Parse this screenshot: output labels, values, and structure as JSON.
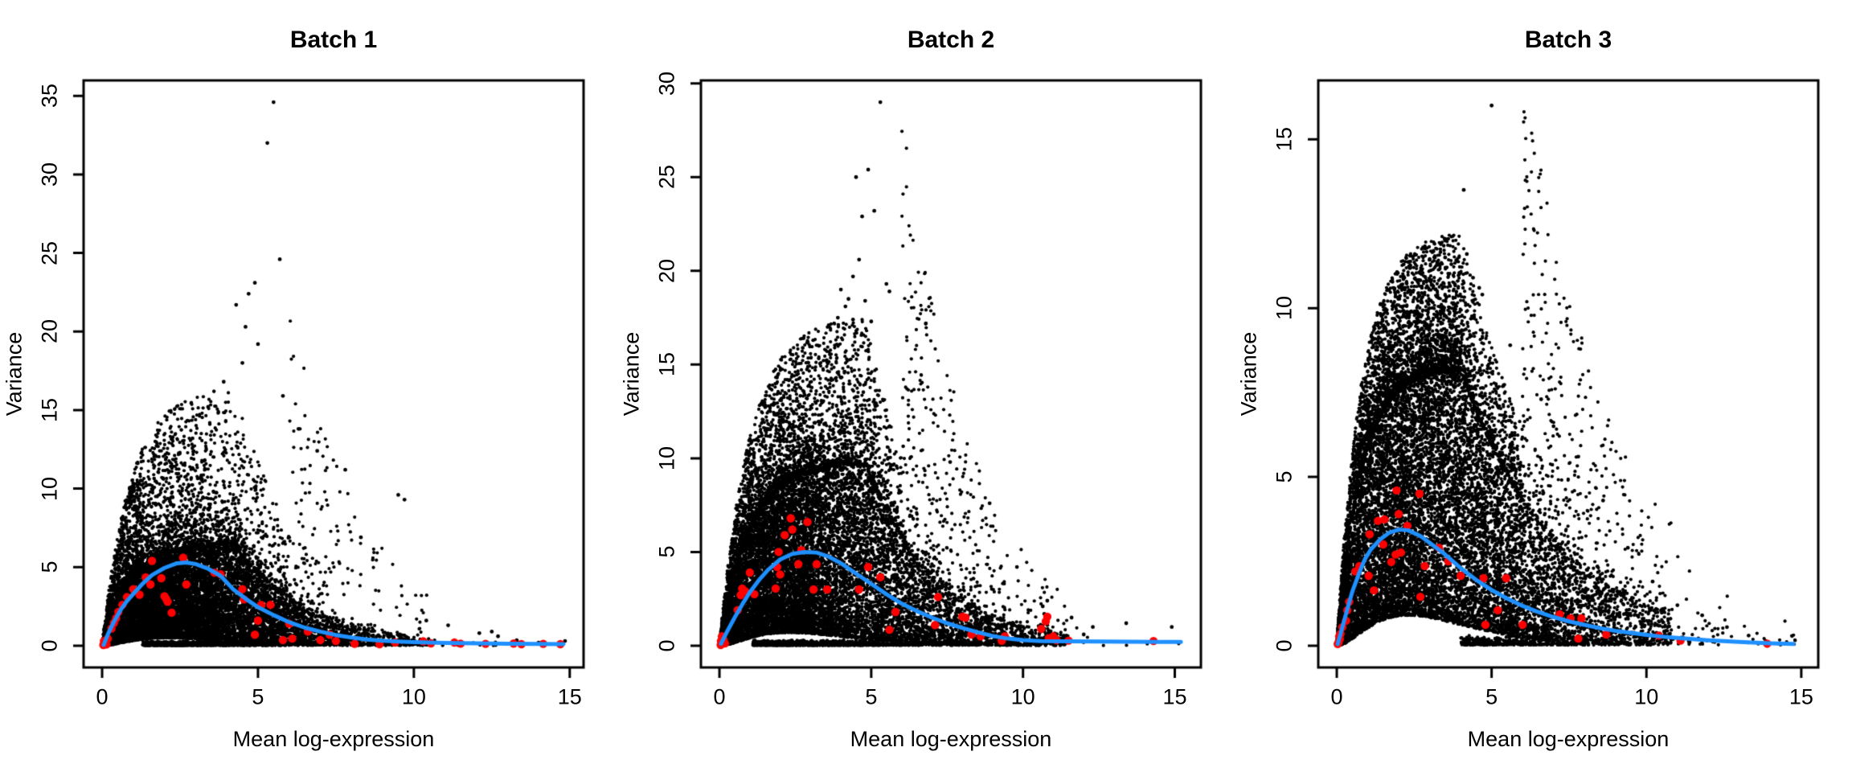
{
  "figure": {
    "background": "#ffffff"
  },
  "style": {
    "point_color": "#000000",
    "spike_color": "#ff0000",
    "trend_color": "#1e90ff",
    "axis_color": "#000000"
  },
  "chart_data": [
    {
      "type": "scatter",
      "title": "Batch 1",
      "xlabel": "Mean log-expression",
      "ylabel": "Variance",
      "xticks": [
        0,
        5,
        10,
        15
      ],
      "yticks": [
        0,
        5,
        10,
        15,
        20,
        25,
        30,
        35
      ],
      "xlim": [
        0,
        14.85
      ],
      "ylim": [
        0,
        34.6
      ],
      "grid": false,
      "legend": "none",
      "trend": [
        [
          0.05,
          0.05
        ],
        [
          0.2,
          0.8
        ],
        [
          0.4,
          1.6
        ],
        [
          0.6,
          2.3
        ],
        [
          0.8,
          2.85
        ],
        [
          1.0,
          3.3
        ],
        [
          1.3,
          3.95
        ],
        [
          1.6,
          4.5
        ],
        [
          2.0,
          4.95
        ],
        [
          2.4,
          5.25
        ],
        [
          2.7,
          5.3
        ],
        [
          3.0,
          5.2
        ],
        [
          3.4,
          4.9
        ],
        [
          3.8,
          4.45
        ],
        [
          4.2,
          3.6
        ],
        [
          4.6,
          3.0
        ],
        [
          5.0,
          2.45
        ],
        [
          5.5,
          1.95
        ],
        [
          6.0,
          1.5
        ],
        [
          6.5,
          1.15
        ],
        [
          7.0,
          0.9
        ],
        [
          7.5,
          0.68
        ],
        [
          8.0,
          0.52
        ],
        [
          8.5,
          0.4
        ],
        [
          9.0,
          0.32
        ],
        [
          9.5,
          0.27
        ],
        [
          10.0,
          0.23
        ],
        [
          11.0,
          0.18
        ],
        [
          12.0,
          0.15
        ],
        [
          13.0,
          0.12
        ],
        [
          14.0,
          0.11
        ],
        [
          14.8,
          0.1
        ]
      ],
      "spike_points": [
        [
          0.04,
          0.05
        ],
        [
          0.08,
          0.12
        ],
        [
          0.12,
          0.22
        ],
        [
          0.18,
          0.45
        ],
        [
          0.06,
          0.3
        ],
        [
          0.14,
          0.08
        ],
        [
          0.3,
          1.1
        ],
        [
          0.38,
          1.45
        ],
        [
          0.45,
          1.75
        ],
        [
          0.52,
          2.15
        ],
        [
          0.65,
          2.6
        ],
        [
          0.8,
          3.1
        ],
        [
          1.0,
          3.6
        ],
        [
          1.2,
          3.25
        ],
        [
          1.4,
          4.35
        ],
        [
          1.55,
          3.9
        ],
        [
          1.6,
          5.4
        ],
        [
          1.9,
          4.3
        ],
        [
          2.0,
          3.15
        ],
        [
          2.05,
          3.0
        ],
        [
          2.1,
          2.8
        ],
        [
          2.23,
          2.1
        ],
        [
          2.6,
          5.6
        ],
        [
          2.7,
          3.9
        ],
        [
          3.6,
          4.65
        ],
        [
          3.8,
          4.55
        ],
        [
          4.5,
          3.6
        ],
        [
          4.55,
          2.95
        ],
        [
          4.9,
          0.7
        ],
        [
          5.0,
          1.6
        ],
        [
          5.1,
          2.6
        ],
        [
          5.4,
          2.6
        ],
        [
          5.8,
          0.36
        ],
        [
          6.0,
          1.4
        ],
        [
          6.1,
          0.45
        ],
        [
          6.6,
          0.9
        ],
        [
          7.0,
          0.36
        ],
        [
          7.3,
          0.7
        ],
        [
          7.5,
          0.3
        ],
        [
          8.1,
          0.12
        ],
        [
          8.9,
          0.1
        ],
        [
          9.4,
          0.2
        ],
        [
          10.3,
          0.28
        ],
        [
          10.55,
          0.15
        ],
        [
          11.3,
          0.2
        ],
        [
          11.5,
          0.13
        ],
        [
          12.3,
          0.12
        ],
        [
          13.2,
          0.14
        ],
        [
          13.45,
          0.1
        ],
        [
          14.15,
          0.12
        ],
        [
          14.7,
          0.1
        ]
      ],
      "outlier_points": [
        [
          5.5,
          34.6
        ],
        [
          5.3,
          32.0
        ],
        [
          5.7,
          24.6
        ],
        [
          4.9,
          23.1
        ],
        [
          4.7,
          22.4
        ],
        [
          4.3,
          21.7
        ],
        [
          4.6,
          20.3
        ],
        [
          5.0,
          19.2
        ],
        [
          4.5,
          18.0
        ],
        [
          3.9,
          16.8
        ],
        [
          5.8,
          15.9
        ],
        [
          3.4,
          15.2
        ],
        [
          6.3,
          13.8
        ],
        [
          2.9,
          13.2
        ],
        [
          6.9,
          12.4
        ],
        [
          7.8,
          11.2
        ],
        [
          9.5,
          9.6
        ],
        [
          9.7,
          9.3
        ],
        [
          8.3,
          6.9
        ],
        [
          10.4,
          1.6
        ],
        [
          11.1,
          1.3
        ],
        [
          12.1,
          0.8
        ],
        [
          12.5,
          0.9
        ],
        [
          12.7,
          0.6
        ],
        [
          13.3,
          0.35
        ],
        [
          14.0,
          0.2
        ],
        [
          14.85,
          0.3
        ]
      ],
      "cloud": {
        "n": 14000,
        "seed": 11,
        "x_scale": 1.55,
        "funnel_frac": 0.07,
        "env": {
          "M": 6.6,
          "rise": 0.9,
          "ds": 4.2,
          "dsc": 2.4
        },
        "low": {
          "m": 0.5,
          "p": 2.1
        },
        "floor_frac": 0.12,
        "floor_xmin": 1.3,
        "above_frac": 0.16,
        "k_above": 1.5,
        "k_far": 6,
        "tail_cut": 10.5,
        "tail_keep": 0.12
      }
    },
    {
      "type": "scatter",
      "title": "Batch 2",
      "xlabel": "Mean log-expression",
      "ylabel": "Variance",
      "xticks": [
        0,
        5,
        10,
        15
      ],
      "yticks": [
        0,
        5,
        10,
        15,
        20,
        25,
        30
      ],
      "xlim": [
        0,
        15.25
      ],
      "ylim": [
        0,
        29.0
      ],
      "grid": false,
      "legend": "none",
      "trend": [
        [
          0.05,
          0.1
        ],
        [
          0.25,
          0.75
        ],
        [
          0.5,
          1.5
        ],
        [
          0.75,
          2.2
        ],
        [
          1.0,
          2.85
        ],
        [
          1.3,
          3.5
        ],
        [
          1.6,
          4.05
        ],
        [
          2.0,
          4.6
        ],
        [
          2.4,
          4.9
        ],
        [
          2.8,
          5.0
        ],
        [
          3.2,
          4.97
        ],
        [
          3.6,
          4.75
        ],
        [
          4.0,
          4.4
        ],
        [
          4.5,
          3.85
        ],
        [
          5.0,
          3.3
        ],
        [
          5.5,
          2.75
        ],
        [
          6.0,
          2.25
        ],
        [
          6.5,
          1.85
        ],
        [
          7.0,
          1.5
        ],
        [
          7.5,
          1.2
        ],
        [
          8.0,
          0.95
        ],
        [
          8.5,
          0.72
        ],
        [
          9.0,
          0.52
        ],
        [
          9.5,
          0.38
        ],
        [
          10.0,
          0.3
        ],
        [
          10.6,
          0.25
        ],
        [
          11.5,
          0.23
        ],
        [
          12.5,
          0.22
        ],
        [
          13.5,
          0.21
        ],
        [
          14.5,
          0.2
        ],
        [
          15.2,
          0.2
        ]
      ],
      "spike_points": [
        [
          0.04,
          0.04
        ],
        [
          0.07,
          0.1
        ],
        [
          0.1,
          0.2
        ],
        [
          0.13,
          0.32
        ],
        [
          0.08,
          0.5
        ],
        [
          0.18,
          0.12
        ],
        [
          0.05,
          0.25
        ],
        [
          0.6,
          1.9
        ],
        [
          0.7,
          2.7
        ],
        [
          0.75,
          3.05
        ],
        [
          0.85,
          2.9
        ],
        [
          1.0,
          3.9
        ],
        [
          1.15,
          2.75
        ],
        [
          1.85,
          3.05
        ],
        [
          1.9,
          4.2
        ],
        [
          1.95,
          5.0
        ],
        [
          2.0,
          3.8
        ],
        [
          2.15,
          5.9
        ],
        [
          2.35,
          6.8
        ],
        [
          2.4,
          6.2
        ],
        [
          2.6,
          4.35
        ],
        [
          2.7,
          5.1
        ],
        [
          2.9,
          6.6
        ],
        [
          3.1,
          3.0
        ],
        [
          3.2,
          4.35
        ],
        [
          3.55,
          3.0
        ],
        [
          4.6,
          3.0
        ],
        [
          4.9,
          4.2
        ],
        [
          5.3,
          3.65
        ],
        [
          5.6,
          0.85
        ],
        [
          5.8,
          1.8
        ],
        [
          7.1,
          1.1
        ],
        [
          7.2,
          2.6
        ],
        [
          8.0,
          1.55
        ],
        [
          8.1,
          1.5
        ],
        [
          8.3,
          0.6
        ],
        [
          8.6,
          0.5
        ],
        [
          9.3,
          0.26
        ],
        [
          9.4,
          0.5
        ],
        [
          10.6,
          0.9
        ],
        [
          10.75,
          1.3
        ],
        [
          10.8,
          1.55
        ],
        [
          10.85,
          0.4
        ],
        [
          11.0,
          0.5
        ],
        [
          11.1,
          0.3
        ],
        [
          11.5,
          0.27
        ],
        [
          14.3,
          0.25
        ]
      ],
      "outlier_points": [
        [
          5.3,
          29.0
        ],
        [
          4.9,
          25.4
        ],
        [
          4.5,
          25.0
        ],
        [
          5.1,
          23.2
        ],
        [
          4.7,
          22.9
        ],
        [
          4.6,
          20.6
        ],
        [
          4.4,
          19.7
        ],
        [
          5.5,
          19.3
        ],
        [
          4.0,
          19.0
        ],
        [
          5.6,
          18.9
        ],
        [
          4.25,
          18.5
        ],
        [
          4.8,
          18.4
        ],
        [
          4.15,
          18.1
        ],
        [
          3.9,
          17.5
        ],
        [
          4.4,
          17.4
        ],
        [
          5.0,
          17.3
        ],
        [
          6.8,
          17.2
        ],
        [
          3.6,
          17.1
        ],
        [
          7.6,
          9.8
        ],
        [
          8.9,
          7.6
        ],
        [
          9.8,
          4.2
        ],
        [
          10.65,
          2.1
        ],
        [
          10.7,
          1.7
        ],
        [
          10.75,
          1.45
        ],
        [
          10.8,
          1.1
        ],
        [
          10.85,
          0.8
        ],
        [
          10.9,
          0.55
        ],
        [
          10.7,
          0.9
        ],
        [
          10.8,
          2.4
        ],
        [
          11.6,
          1.5
        ],
        [
          12.3,
          1.0
        ],
        [
          13.4,
          1.2
        ],
        [
          14.9,
          1.0
        ],
        [
          12.0,
          0.6
        ]
      ],
      "cloud": {
        "n": 15000,
        "seed": 22,
        "x_scale": 1.85,
        "funnel_frac": 0.07,
        "env": {
          "M": 9.8,
          "rise": 1.0,
          "ds": 4.8,
          "dsc": 2.3
        },
        "low": {
          "m": 0.7,
          "p": 2.3
        },
        "floor_frac": 0.11,
        "floor_xmin": 1.1,
        "above_frac": 0.2,
        "k_above": 0.8,
        "k_far": 4,
        "tail_cut": 11.5,
        "tail_keep": 0.05
      }
    },
    {
      "type": "scatter",
      "title": "Batch 3",
      "xlabel": "Mean log-expression",
      "ylabel": "Variance",
      "xticks": [
        0,
        5,
        10,
        15
      ],
      "yticks": [
        0,
        5,
        10,
        15
      ],
      "xlim": [
        0,
        14.95
      ],
      "ylim": [
        0,
        16.1
      ],
      "grid": false,
      "legend": "none",
      "trend": [
        [
          0.03,
          0.05
        ],
        [
          0.15,
          0.45
        ],
        [
          0.3,
          0.95
        ],
        [
          0.5,
          1.6
        ],
        [
          0.7,
          2.1
        ],
        [
          0.9,
          2.55
        ],
        [
          1.1,
          2.85
        ],
        [
          1.4,
          3.15
        ],
        [
          1.7,
          3.35
        ],
        [
          2.0,
          3.44
        ],
        [
          2.3,
          3.42
        ],
        [
          2.7,
          3.25
        ],
        [
          3.0,
          3.05
        ],
        [
          3.5,
          2.7
        ],
        [
          4.0,
          2.3
        ],
        [
          4.5,
          1.95
        ],
        [
          5.0,
          1.65
        ],
        [
          5.5,
          1.4
        ],
        [
          6.0,
          1.18
        ],
        [
          6.5,
          1.0
        ],
        [
          7.0,
          0.85
        ],
        [
          7.5,
          0.72
        ],
        [
          8.0,
          0.62
        ],
        [
          8.5,
          0.52
        ],
        [
          9.0,
          0.44
        ],
        [
          9.5,
          0.38
        ],
        [
          10.0,
          0.32
        ],
        [
          10.5,
          0.27
        ],
        [
          11.0,
          0.23
        ],
        [
          12.0,
          0.16
        ],
        [
          13.0,
          0.11
        ],
        [
          14.0,
          0.07
        ],
        [
          14.75,
          0.05
        ]
      ],
      "spike_points": [
        [
          0.03,
          0.05
        ],
        [
          0.06,
          0.1
        ],
        [
          0.1,
          0.2
        ],
        [
          0.12,
          0.35
        ],
        [
          0.18,
          0.55
        ],
        [
          0.08,
          0.28
        ],
        [
          0.3,
          0.74
        ],
        [
          0.34,
          1.05
        ],
        [
          0.4,
          1.3
        ],
        [
          0.6,
          2.2
        ],
        [
          0.73,
          2.36
        ],
        [
          1.03,
          2.07
        ],
        [
          1.06,
          3.3
        ],
        [
          1.2,
          1.64
        ],
        [
          1.33,
          3.7
        ],
        [
          1.5,
          3.0
        ],
        [
          1.54,
          3.74
        ],
        [
          1.76,
          2.48
        ],
        [
          1.9,
          2.7
        ],
        [
          1.93,
          4.6
        ],
        [
          2.0,
          3.9
        ],
        [
          2.07,
          2.76
        ],
        [
          2.28,
          3.55
        ],
        [
          2.67,
          4.5
        ],
        [
          2.7,
          1.45
        ],
        [
          2.84,
          2.36
        ],
        [
          3.3,
          2.9
        ],
        [
          3.6,
          2.5
        ],
        [
          4.0,
          2.07
        ],
        [
          4.74,
          2.0
        ],
        [
          4.8,
          0.62
        ],
        [
          5.2,
          1.05
        ],
        [
          5.47,
          2.0
        ],
        [
          6.0,
          0.62
        ],
        [
          7.2,
          0.93
        ],
        [
          7.55,
          0.81
        ],
        [
          7.8,
          0.21
        ],
        [
          7.9,
          0.81
        ],
        [
          8.7,
          0.33
        ],
        [
          10.4,
          0.3
        ],
        [
          11.1,
          0.15
        ],
        [
          13.9,
          0.06
        ]
      ],
      "outlier_points": [
        [
          5.0,
          16.0
        ],
        [
          4.1,
          13.5
        ],
        [
          3.5,
          11.5
        ],
        [
          4.2,
          11.6
        ],
        [
          3.0,
          11.45
        ],
        [
          3.3,
          11.3
        ],
        [
          3.7,
          11.3
        ],
        [
          4.4,
          10.9
        ],
        [
          2.75,
          10.6
        ],
        [
          4.6,
          10.6
        ],
        [
          4.7,
          10.4
        ],
        [
          2.6,
          9.9
        ],
        [
          5.6,
          8.9
        ],
        [
          6.6,
          7.3
        ],
        [
          7.0,
          6.5
        ],
        [
          7.8,
          5.6
        ],
        [
          8.6,
          4.3
        ],
        [
          9.4,
          2.9
        ],
        [
          10.2,
          1.9
        ],
        [
          11.0,
          1.2
        ],
        [
          11.8,
          0.9
        ],
        [
          12.6,
          0.55
        ],
        [
          13.3,
          0.3
        ],
        [
          14.7,
          0.29
        ]
      ],
      "cloud": {
        "n": 15000,
        "seed": 33,
        "x_scale": 1.95,
        "funnel_frac": 0.07,
        "env": {
          "M": 8.2,
          "rise": 0.8,
          "ds": 4.0,
          "dsc": 3.1
        },
        "low": {
          "m": 0.9,
          "p": 2.3
        },
        "floor_frac": 0.1,
        "floor_xmin": 4.0,
        "above_frac": 0.22,
        "k_above": 0.5,
        "k_far": 3,
        "tail_cut": 10.8,
        "tail_keep": 0.2
      }
    }
  ]
}
